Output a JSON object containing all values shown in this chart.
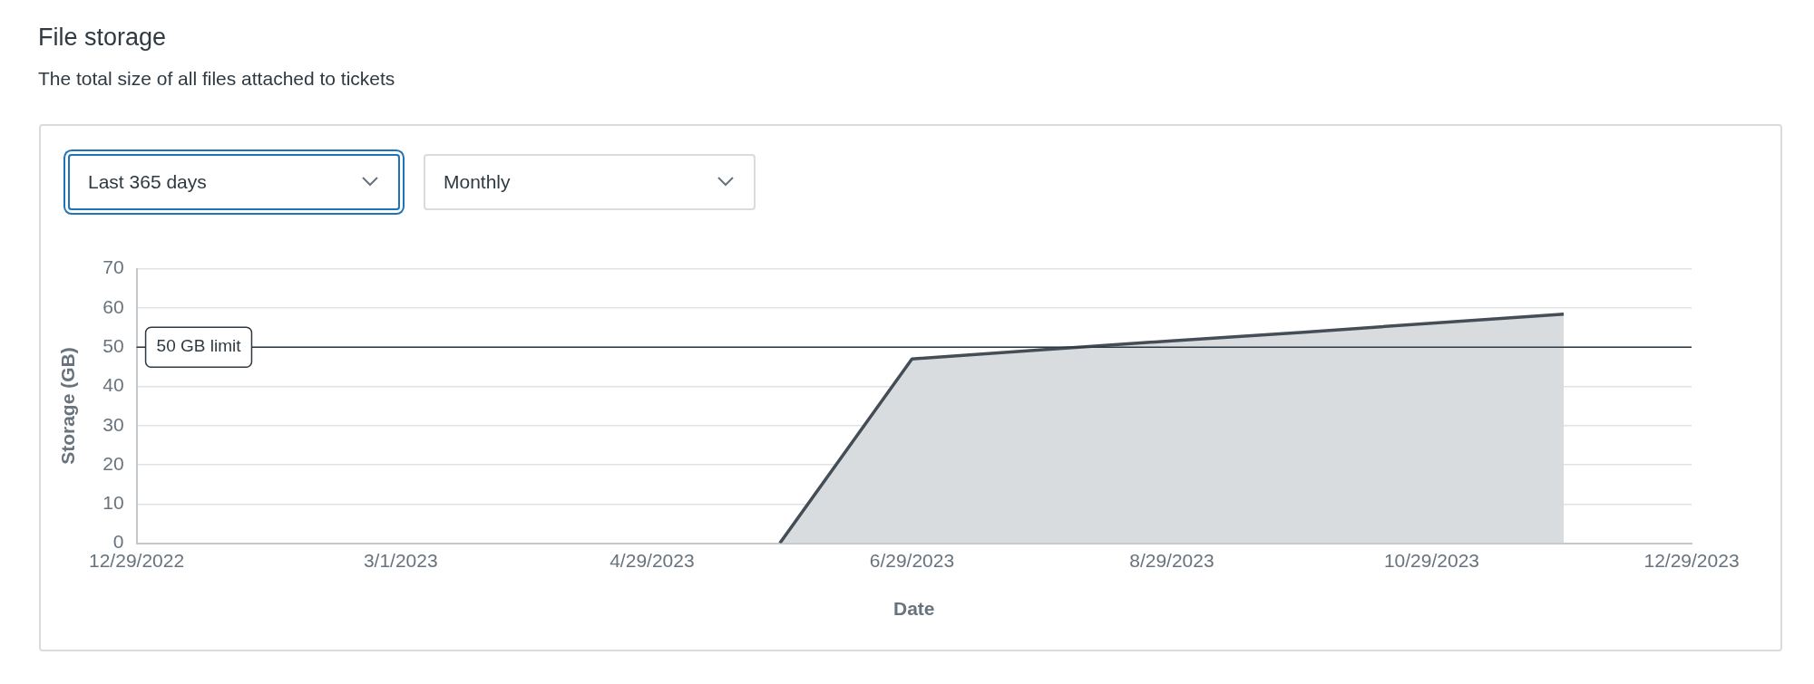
{
  "chart_data": {
    "type": "area",
    "title": "File storage",
    "subtitle": "The total size of all files attached to tickets",
    "annotations": [
      "Last 365 days",
      "Monthly"
    ],
    "xlabel": "Date",
    "ylabel": "Storage (GB)",
    "x": [
      "2023-05-29",
      "2023-06-29",
      "2023-07-29",
      "2023-08-29",
      "2023-09-29",
      "2023-10-29",
      "2023-11-29"
    ],
    "series": [
      {
        "color": "#454d56",
        "values": [
          0,
          47,
          49.3,
          51.6,
          53.8,
          56.1,
          58.4
        ]
      }
    ],
    "xlim": [
      "2022-12-29",
      "2023-12-29"
    ],
    "xticks": [
      {
        "value": "2022-12-29",
        "label": "12/29/2022"
      },
      {
        "value": "2023-03-01",
        "label": "3/1/2023"
      },
      {
        "value": "2023-04-29",
        "label": "4/29/2023"
      },
      {
        "value": "2023-06-29",
        "label": "6/29/2023"
      },
      {
        "value": "2023-08-29",
        "label": "8/29/2023"
      },
      {
        "value": "2023-10-29",
        "label": "10/29/2023"
      },
      {
        "value": "2023-12-29",
        "label": "12/29/2023"
      }
    ],
    "ylim": [
      0,
      70
    ],
    "yticks": [
      0,
      10,
      20,
      30,
      40,
      50,
      60,
      70
    ],
    "ref_lines": [
      {
        "axis": "y",
        "value": 50,
        "label": "50 GB limit",
        "color": "#2f3941"
      }
    ],
    "grid": "y",
    "legend": false,
    "marker": "none"
  }
}
